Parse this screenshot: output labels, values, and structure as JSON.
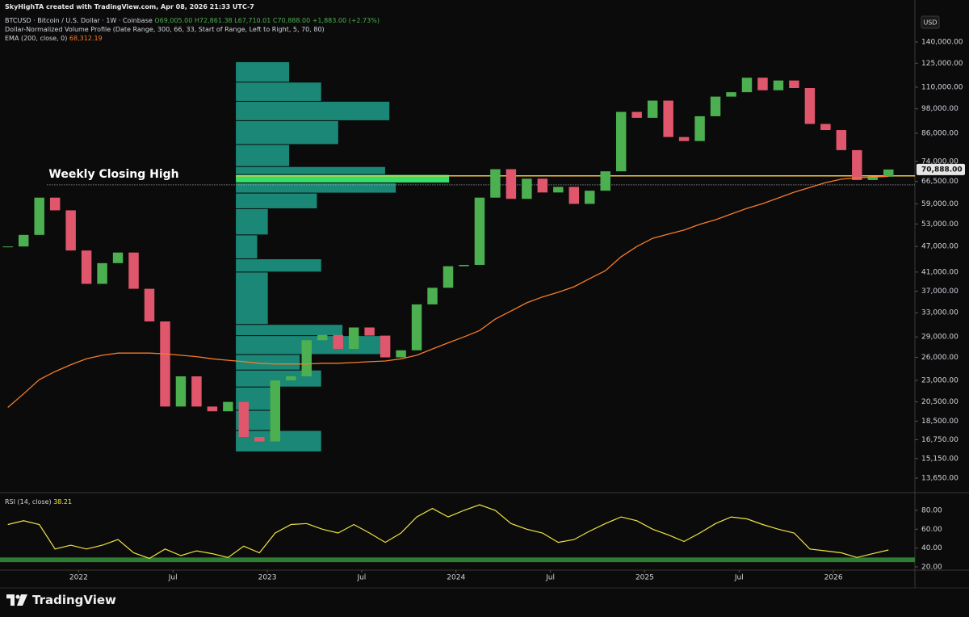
{
  "header": {
    "caption": "SkyHighTA created with TradingView.com, Apr 08, 2026 21:33 UTC-7"
  },
  "footer": {
    "brand": "TradingView"
  },
  "chart_data": [
    {
      "type": "candlestick",
      "subtitle": "O69,005.00 H72,861.38 L67,710.01 C70,888.00 +1,883.00 (+2.73%)",
      "y_unit": "USD",
      "x": [
        "2021-08",
        "2021-09",
        "2021-10",
        "2021-11",
        "2021-12",
        "2022-01",
        "2022-02",
        "2022-03",
        "2022-04",
        "2022-05",
        "2022-06",
        "2022-07",
        "2022-08",
        "2022-09",
        "2022-10",
        "2022-11",
        "2022-12",
        "2023-01",
        "2023-02",
        "2023-03",
        "2023-04",
        "2023-05",
        "2023-06",
        "2023-07",
        "2023-08",
        "2023-09",
        "2023-10",
        "2023-11",
        "2023-12",
        "2024-01",
        "2024-02",
        "2024-03",
        "2024-04",
        "2024-05",
        "2024-06",
        "2024-07",
        "2024-08",
        "2024-09",
        "2024-10",
        "2024-11",
        "2024-12",
        "2025-01",
        "2025-02",
        "2025-03",
        "2025-04",
        "2025-05",
        "2025-06",
        "2025-07",
        "2025-08",
        "2025-09",
        "2025-10",
        "2025-11",
        "2025-12",
        "2026-01",
        "2026-02",
        "2026-03",
        "2026-04"
      ],
      "series": [
        {
          "name": "BTCUSD · Bitcoin / U.S. Dollar · 1W · Coinbase",
          "type": "candlestick",
          "up_color": "#4caf50",
          "down_color": "#e0566c",
          "values": [
            47000,
            50000,
            61000,
            57000,
            46000,
            38500,
            43000,
            45500,
            37500,
            31500,
            20000,
            23500,
            20000,
            19500,
            20500,
            17000,
            16600,
            23000,
            23500,
            28500,
            29300,
            27200,
            30500,
            29200,
            26000,
            27000,
            34500,
            37700,
            42300,
            42600,
            61000,
            71000,
            60600,
            67500,
            62700,
            64600,
            59000,
            63300,
            70200,
            96400,
            93400,
            102400,
            84300,
            82500,
            94200,
            104600,
            107100,
            115700,
            108200,
            114000,
            109500,
            90400,
            87500,
            78600,
            67000,
            68200,
            70888
          ]
        },
        {
          "name": "EMA (200, close, 0)",
          "type": "line",
          "color": "#f57c2b",
          "last_label": "68,312.19",
          "values": [
            19900,
            21400,
            23100,
            24100,
            25000,
            25800,
            26300,
            26600,
            26600,
            26600,
            26500,
            26300,
            26100,
            25800,
            25600,
            25400,
            25200,
            25100,
            25100,
            25100,
            25200,
            25200,
            25300,
            25400,
            25500,
            25800,
            26300,
            27200,
            28100,
            29000,
            30000,
            31900,
            33300,
            34800,
            35900,
            36800,
            37900,
            39600,
            41300,
            44500,
            47000,
            49100,
            50200,
            51300,
            52900,
            54200,
            55900,
            57600,
            59100,
            60900,
            62800,
            64400,
            66100,
            67300,
            67800,
            68100,
            68300
          ]
        }
      ],
      "volume_profile": {
        "name": "Dollar-Normalized Volume Profile (Date Range, 300, 66, 33, Start of Range, Left to Right, 5, 70, 80)",
        "x": "2022-11",
        "color": "#1f9e89",
        "highlight_index": 6,
        "highlight_color": "#35e06a",
        "bins": [
          126000,
          113000,
          102000,
          92000,
          81000,
          72000,
          69000,
          66000,
          62500,
          57500,
          50000,
          44000,
          41000,
          31000,
          29200,
          26400,
          24300,
          22200,
          19600,
          17600,
          15700
        ],
        "values": [
          25,
          40,
          72,
          48,
          25,
          70,
          100,
          75,
          38,
          15,
          10,
          40,
          15,
          50,
          72,
          30,
          40,
          18,
          17,
          40
        ]
      },
      "hlines": [
        {
          "value": 68500,
          "color": "#f5c542",
          "x": "2022-11"
        }
      ],
      "annotations": [
        {
          "text": "Weekly Closing High",
          "value": 65300,
          "x": "2021-11"
        }
      ],
      "last_price": {
        "value": 70888,
        "label": "70,888.00"
      },
      "xlim": [
        "2021-08",
        "2026-05"
      ],
      "ylim": [
        12740,
        162100
      ],
      "log": true,
      "grid": false,
      "yticks": [
        {
          "value": 140000,
          "label": "140,000.00"
        },
        {
          "value": 125000,
          "label": "125,000.00"
        },
        {
          "value": 110000,
          "label": "110,000.00"
        },
        {
          "value": 98000,
          "label": "98,000.00"
        },
        {
          "value": 86000,
          "label": "86,000.00"
        },
        {
          "value": 74000,
          "label": "74,000.00"
        },
        {
          "value": 66500,
          "label": "66,500.00"
        },
        {
          "value": 59000,
          "label": "59,000.00"
        },
        {
          "value": 53000,
          "label": "53,000.00"
        },
        {
          "value": 47000,
          "label": "47,000.00"
        },
        {
          "value": 41000,
          "label": "41,000.00"
        },
        {
          "value": 37000,
          "label": "37,000.00"
        },
        {
          "value": 33000,
          "label": "33,000.00"
        },
        {
          "value": 29000,
          "label": "29,000.00"
        },
        {
          "value": 26000,
          "label": "26,000.00"
        },
        {
          "value": 23000,
          "label": "23,000.00"
        },
        {
          "value": 20500,
          "label": "20,500.00"
        },
        {
          "value": 18500,
          "label": "18,500.00"
        },
        {
          "value": 16750,
          "label": "16,750.00"
        },
        {
          "value": 15150,
          "label": "15,150.00"
        },
        {
          "value": 13650,
          "label": "13,650.00"
        }
      ]
    },
    {
      "type": "line",
      "title": "RSI (14, close)",
      "last_label": "38.21",
      "color": "#f0e442",
      "x": [
        "2021-08",
        "2021-09",
        "2021-10",
        "2021-11",
        "2021-12",
        "2022-01",
        "2022-02",
        "2022-03",
        "2022-04",
        "2022-05",
        "2022-06",
        "2022-07",
        "2022-08",
        "2022-09",
        "2022-10",
        "2022-11",
        "2022-12",
        "2023-01",
        "2023-02",
        "2023-03",
        "2023-04",
        "2023-05",
        "2023-06",
        "2023-07",
        "2023-08",
        "2023-09",
        "2023-10",
        "2023-11",
        "2023-12",
        "2024-01",
        "2024-02",
        "2024-03",
        "2024-04",
        "2024-05",
        "2024-06",
        "2024-07",
        "2024-08",
        "2024-09",
        "2024-10",
        "2024-11",
        "2024-12",
        "2025-01",
        "2025-02",
        "2025-03",
        "2025-04",
        "2025-05",
        "2025-06",
        "2025-07",
        "2025-08",
        "2025-09",
        "2025-10",
        "2025-11",
        "2025-12",
        "2026-01",
        "2026-02",
        "2026-03",
        "2026-04"
      ],
      "values": [
        65,
        69,
        65,
        39,
        43,
        39,
        43,
        49,
        35,
        29,
        39,
        32,
        37,
        34,
        30,
        42,
        35,
        56,
        65,
        66,
        60,
        56,
        65,
        56,
        46,
        56,
        73,
        82,
        73,
        80,
        86,
        80,
        66,
        60,
        56,
        46,
        49,
        58,
        66,
        73,
        69,
        60,
        54,
        47,
        56,
        66,
        73,
        71,
        65,
        60,
        56,
        39,
        37,
        35,
        30,
        34,
        38
      ],
      "bands": [
        {
          "from": 25,
          "to": 30,
          "color": "#2e7d32"
        }
      ],
      "xlim": [
        "2021-08",
        "2026-05"
      ],
      "ylim": [
        17.4,
        97.1
      ],
      "grid": false,
      "yticks": [
        {
          "value": 80,
          "label": "80.00"
        },
        {
          "value": 60,
          "label": "60.00"
        },
        {
          "value": 40,
          "label": "40.00"
        },
        {
          "value": 20,
          "label": "20.00"
        }
      ],
      "xticks": [
        {
          "value": "2022-01",
          "label": "2022"
        },
        {
          "value": "2022-07",
          "label": "Jul"
        },
        {
          "value": "2023-01",
          "label": "2023"
        },
        {
          "value": "2023-07",
          "label": "Jul"
        },
        {
          "value": "2024-01",
          "label": "2024"
        },
        {
          "value": "2024-07",
          "label": "Jul"
        },
        {
          "value": "2025-01",
          "label": "2025"
        },
        {
          "value": "2025-07",
          "label": "Jul"
        },
        {
          "value": "2026-01",
          "label": "2026"
        }
      ]
    }
  ]
}
